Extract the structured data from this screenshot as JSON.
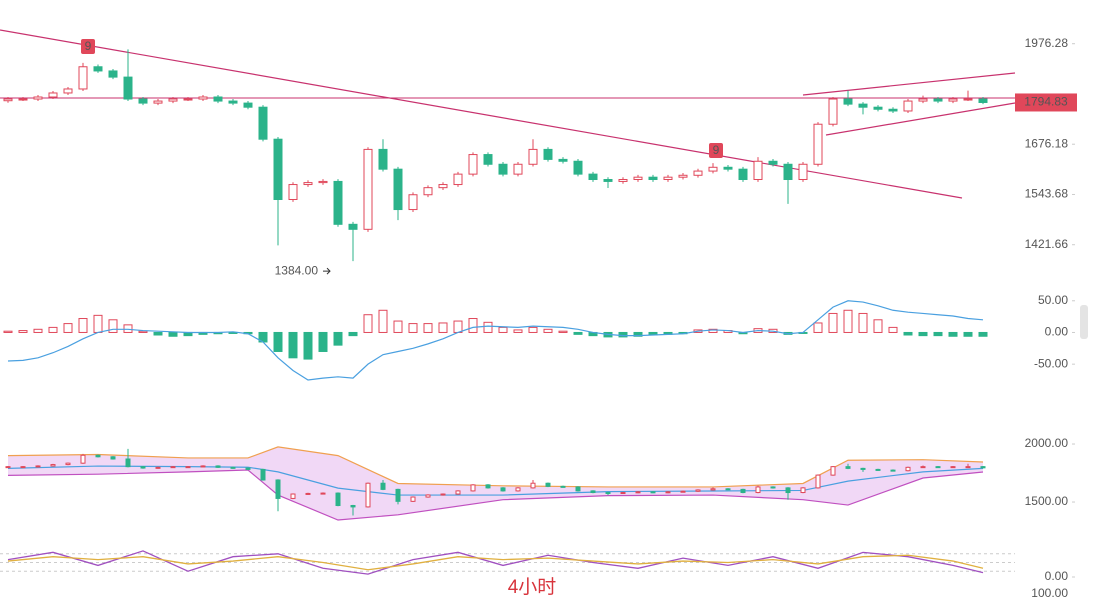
{
  "chart_data": [
    {
      "type": "candlestick",
      "log_scale": true,
      "grid": false,
      "up_color": "#e0475a",
      "down_color": "#2bb38a",
      "ylim": [
        1320,
        2123
      ],
      "yticks": [
        1976.28,
        1676.18,
        1543.68,
        1421.66
      ],
      "open": [
        1800,
        1805,
        1805,
        1811,
        1823,
        1835,
        1903,
        1890,
        1871,
        1805,
        1793,
        1799,
        1805,
        1805,
        1811,
        1799,
        1793,
        1781,
        1690,
        1531,
        1569,
        1574,
        1577,
        1470,
        1458,
        1662,
        1609,
        1506,
        1543,
        1561,
        1569,
        1596,
        1648,
        1622,
        1596,
        1622,
        1662,
        1635,
        1630,
        1596,
        1582,
        1577,
        1582,
        1588,
        1582,
        1588,
        1593,
        1604,
        1614,
        1609,
        1582,
        1630,
        1622,
        1582,
        1622,
        1732,
        1805,
        1790,
        1781,
        1775,
        1770,
        1799,
        1805,
        1799,
        1805,
        1805
      ],
      "high": [
        1811,
        1811,
        1817,
        1829,
        1841,
        1915,
        1910,
        1896,
        1958,
        1811,
        1805,
        1811,
        1811,
        1817,
        1817,
        1805,
        1799,
        1787,
        1696,
        1575,
        1580,
        1583,
        1583,
        1476,
        1668,
        1690,
        1615,
        1549,
        1567,
        1575,
        1602,
        1654,
        1654,
        1628,
        1628,
        1690,
        1668,
        1641,
        1636,
        1602,
        1588,
        1588,
        1594,
        1594,
        1594,
        1599,
        1610,
        1625,
        1620,
        1615,
        1641,
        1636,
        1628,
        1628,
        1738,
        1811,
        1830,
        1796,
        1787,
        1781,
        1805,
        1815,
        1811,
        1811,
        1830,
        1811
      ],
      "low": [
        1794,
        1799,
        1799,
        1805,
        1817,
        1829,
        1884,
        1865,
        1799,
        1787,
        1787,
        1793,
        1799,
        1799,
        1793,
        1787,
        1775,
        1684,
        1420,
        1525,
        1563,
        1568,
        1464,
        1384,
        1452,
        1603,
        1480,
        1500,
        1537,
        1555,
        1563,
        1590,
        1616,
        1590,
        1590,
        1616,
        1629,
        1624,
        1590,
        1576,
        1560,
        1571,
        1576,
        1576,
        1576,
        1582,
        1587,
        1598,
        1603,
        1576,
        1576,
        1616,
        1520,
        1576,
        1616,
        1726,
        1784,
        1760,
        1769,
        1764,
        1764,
        1793,
        1793,
        1793,
        1799,
        1790
      ],
      "close": [
        1805,
        1805,
        1811,
        1823,
        1835,
        1903,
        1890,
        1871,
        1805,
        1793,
        1799,
        1805,
        1805,
        1811,
        1799,
        1793,
        1781,
        1690,
        1531,
        1569,
        1574,
        1577,
        1470,
        1458,
        1662,
        1609,
        1506,
        1543,
        1561,
        1569,
        1596,
        1648,
        1622,
        1596,
        1622,
        1662,
        1635,
        1630,
        1596,
        1582,
        1577,
        1582,
        1588,
        1582,
        1588,
        1593,
        1604,
        1614,
        1609,
        1582,
        1630,
        1622,
        1582,
        1622,
        1732,
        1805,
        1790,
        1781,
        1775,
        1770,
        1799,
        1805,
        1799,
        1805,
        1805,
        1794.83
      ],
      "last_price": 1794.83,
      "last_price_color": "#e0475a",
      "low_marker": {
        "value": 1384,
        "label": "1384.00"
      },
      "setup_labels": [
        "9",
        "9"
      ]
    },
    {
      "type": "macd",
      "ylim": [
        -75,
        67
      ],
      "yticks": [
        {
          "value": 50,
          "label": "50.00"
        },
        {
          "value": 0,
          "label": "0.00"
        },
        {
          "value": -50,
          "label": "-50.00"
        }
      ],
      "up_color": "#e0475a",
      "down_color": "#2bb38a",
      "line_color": "#4aa0e0",
      "values": [
        2,
        3,
        5,
        8,
        14,
        22,
        27,
        20,
        12,
        2,
        -4,
        -6,
        -5,
        -3,
        -2,
        -1,
        -2,
        -15,
        -30,
        -40,
        -42,
        -30,
        -20,
        -5,
        28,
        35,
        18,
        14,
        14,
        15,
        18,
        22,
        16,
        8,
        4,
        8,
        5,
        2,
        -3,
        -5,
        -7,
        -7,
        -6,
        -4,
        -3,
        -2,
        4,
        5,
        3,
        -2,
        6,
        5,
        -3,
        -1,
        15,
        30,
        35,
        30,
        20,
        8,
        -4,
        -5,
        -5,
        -6,
        -6,
        -6
      ],
      "dif": [
        -45,
        -44,
        -40,
        -32,
        -22,
        -10,
        0,
        5,
        5,
        3,
        2,
        1,
        0,
        0,
        0,
        1,
        -2,
        -15,
        -40,
        -60,
        -75,
        -72,
        -70,
        -72,
        -50,
        -35,
        -30,
        -25,
        -18,
        -10,
        0,
        8,
        10,
        9,
        8,
        10,
        9,
        8,
        5,
        0,
        -3,
        -5,
        -5,
        -4,
        -3,
        -2,
        2,
        4,
        3,
        0,
        3,
        2,
        -2,
        0,
        20,
        40,
        50,
        48,
        42,
        35,
        32,
        30,
        28,
        26,
        22,
        20
      ]
    },
    {
      "type": "band",
      "ylim": [
        1302,
        2164
      ],
      "yticks": [
        {
          "value": 2000,
          "label": "2000.00"
        },
        {
          "value": 1500,
          "label": "1500.00"
        }
      ],
      "fill": "#f1d8f6",
      "upper_color": "#f0a050",
      "middle_color": "#4aa0e0",
      "lower_color": "#c050c0",
      "x": [
        0,
        6,
        12,
        16,
        18,
        22,
        26,
        33,
        40,
        47,
        53,
        56,
        61,
        65
      ],
      "upper": [
        1900,
        1910,
        1880,
        1880,
        1975,
        1900,
        1660,
        1640,
        1630,
        1630,
        1660,
        1860,
        1865,
        1845
      ],
      "middle": [
        1790,
        1810,
        1805,
        1800,
        1760,
        1620,
        1560,
        1560,
        1590,
        1595,
        1600,
        1680,
        1760,
        1790
      ],
      "lower": [
        1730,
        1740,
        1760,
        1776,
        1560,
        1345,
        1390,
        1520,
        1555,
        1560,
        1520,
        1474,
        1707,
        1759
      ]
    },
    {
      "type": "oscillator",
      "ylim": [
        0,
        100
      ],
      "yticks": [
        {
          "value": 0,
          "label": "0.00"
        }
      ],
      "grid_levels": [
        20,
        50,
        80
      ],
      "x": [
        0,
        3,
        6,
        9,
        12,
        15,
        18,
        21,
        24,
        27,
        30,
        33,
        36,
        39,
        42,
        45,
        48,
        51,
        54,
        57,
        60,
        63,
        65
      ],
      "series": [
        {
          "color": "#a050c0",
          "values": [
            60,
            85,
            40,
            90,
            20,
            70,
            80,
            30,
            10,
            60,
            85,
            40,
            75,
            50,
            30,
            65,
            40,
            70,
            30,
            85,
            70,
            40,
            15
          ]
        },
        {
          "color": "#e0b040",
          "values": [
            55,
            70,
            60,
            70,
            45,
            55,
            70,
            50,
            25,
            45,
            70,
            60,
            65,
            55,
            45,
            55,
            50,
            60,
            45,
            70,
            75,
            55,
            30
          ]
        }
      ]
    }
  ],
  "footer": {
    "watermark": "4小时",
    "cut_tick": "100.00"
  }
}
